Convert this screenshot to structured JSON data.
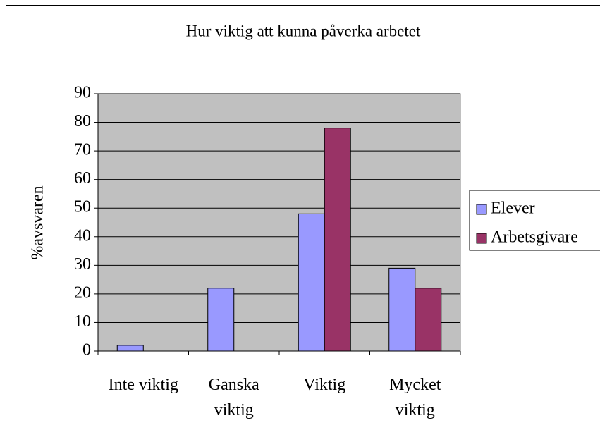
{
  "chart_data": {
    "type": "bar",
    "title": "Hur viktig att kunna påverka arbetet",
    "ylabel": "%avsvaren",
    "categories": [
      "Inte viktig",
      "Ganska viktig",
      "Viktig",
      "Mycket viktig"
    ],
    "series": [
      {
        "name": "Elever",
        "color": "#9999ff",
        "values": [
          2,
          22,
          48,
          29
        ]
      },
      {
        "name": "Arbetsgivare",
        "color": "#993366",
        "values": [
          0,
          0,
          78,
          22
        ]
      }
    ],
    "ylim": [
      0,
      90
    ],
    "yticks": [
      0,
      10,
      20,
      30,
      40,
      50,
      60,
      70,
      80,
      90
    ],
    "grid": true,
    "legend": "right",
    "plot_background": "#c0c0c0"
  }
}
